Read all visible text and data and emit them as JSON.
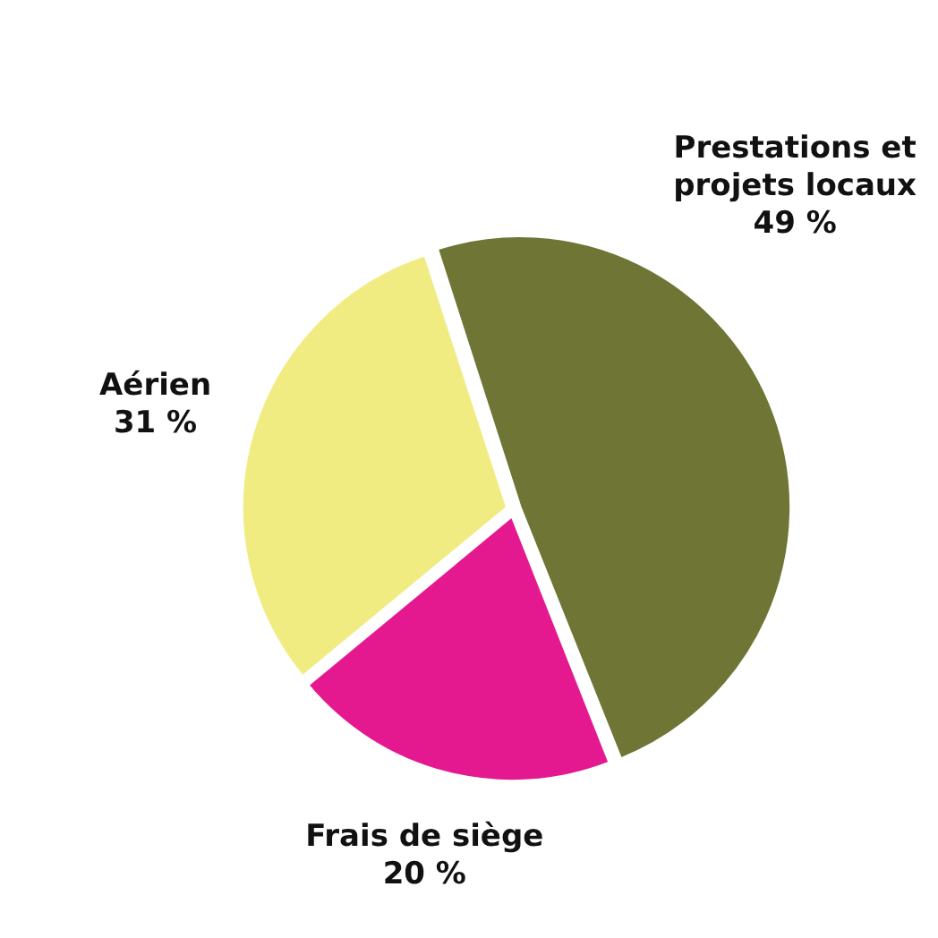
{
  "chart_data": {
    "type": "pie",
    "categories": [
      "Prestations et projets locaux",
      "Frais de siège",
      "Aérien"
    ],
    "values": [
      49,
      20,
      31
    ],
    "colors": [
      "#6e7535",
      "#e5198f",
      "#f0ec82"
    ],
    "value_labels": [
      "49 %",
      "20 %",
      "31 %"
    ],
    "legend": false
  }
}
